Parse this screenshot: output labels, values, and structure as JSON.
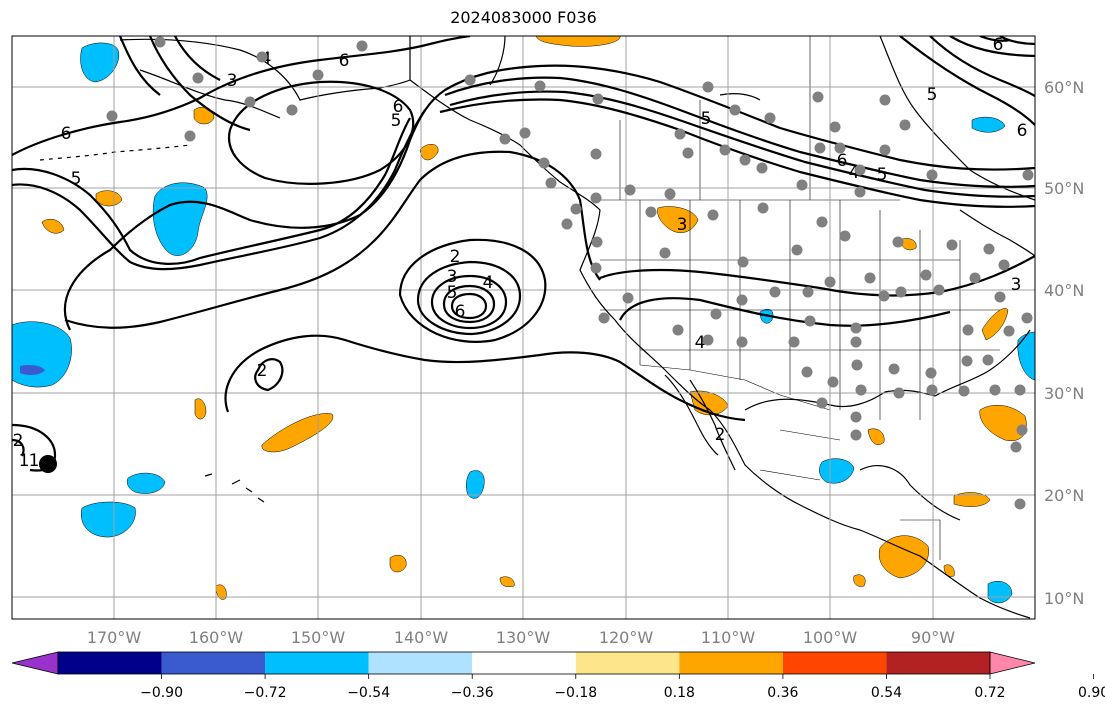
{
  "title": "2024083000 F036",
  "map": {
    "lon_ticks": [
      "170°W",
      "160°W",
      "150°W",
      "140°W",
      "130°W",
      "120°W",
      "110°W",
      "100°W",
      "90°W"
    ],
    "lat_ticks": [
      "60°N",
      "50°N",
      "40°N",
      "30°N",
      "20°N",
      "10°N"
    ],
    "grid": true,
    "contour_labels": [
      "6",
      "3",
      "4",
      "6",
      "2",
      "3",
      "4",
      "5",
      "6",
      "2",
      "5",
      "6",
      "5",
      "2",
      "1",
      "1",
      "6",
      "5",
      "6",
      "5",
      "3",
      "4",
      "5",
      "6",
      "3",
      "4",
      "2"
    ],
    "colors": {
      "contour": "#000000",
      "grid": "#a0a0a0",
      "station": "#808080",
      "land": "#000000"
    }
  },
  "colorbar": {
    "ticks": [
      "−0.90",
      "−0.72",
      "−0.54",
      "−0.36",
      "−0.18",
      "0.18",
      "0.36",
      "0.54",
      "0.72",
      "0.90"
    ],
    "colors": [
      "#9932cc",
      "#00008b",
      "#3a5bcf",
      "#00bfff",
      "#aee2ff",
      "#ffffff",
      "#fde68a",
      "#ffa500",
      "#ff4500",
      "#b22222",
      "#ff88aa"
    ]
  }
}
